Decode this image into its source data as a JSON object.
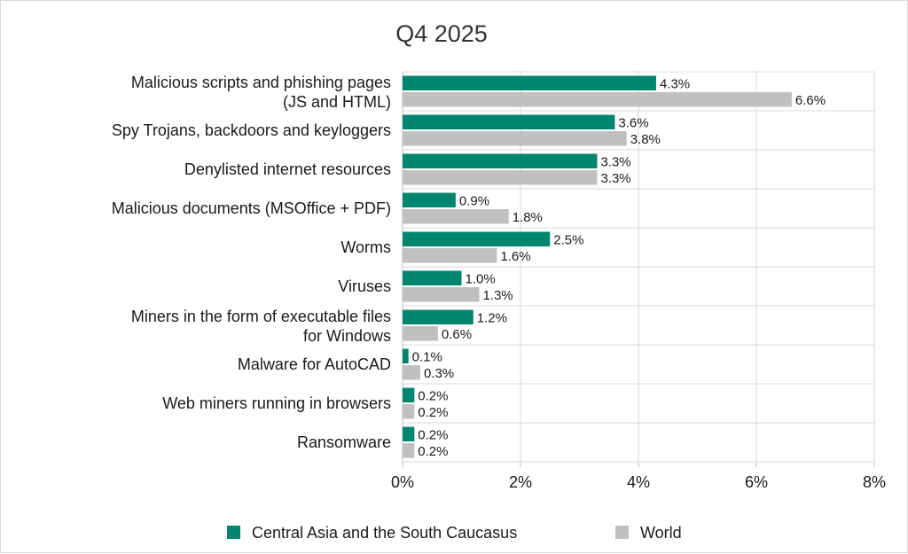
{
  "chart_data": {
    "type": "bar",
    "orientation": "horizontal",
    "title": "Q4 2025",
    "categories": [
      [
        "Malicious scripts and phishing pages",
        "(JS and HTML)"
      ],
      [
        "Spy Trojans, backdoors and keyloggers"
      ],
      [
        "Denylisted internet resources"
      ],
      [
        "Malicious documents (MSOffice + PDF)"
      ],
      [
        "Worms"
      ],
      [
        "Viruses"
      ],
      [
        "Miners in the form of executable files",
        "for Windows"
      ],
      [
        "Malware for AutoCAD"
      ],
      [
        "Web miners running in browsers"
      ],
      [
        "Ransomware"
      ]
    ],
    "series": [
      {
        "name": "Central Asia and the South Caucasus",
        "color": "#00856f",
        "values": [
          4.3,
          3.6,
          3.3,
          0.9,
          2.5,
          1.0,
          1.2,
          0.1,
          0.2,
          0.2
        ],
        "labels": [
          "4.3%",
          "3.6%",
          "3.3%",
          "0.9%",
          "2.5%",
          "1.0%",
          "1.2%",
          "0.1%",
          "0.2%",
          "0.2%"
        ]
      },
      {
        "name": "World",
        "color": "#c0c0c0",
        "values": [
          6.6,
          3.8,
          3.3,
          1.8,
          1.6,
          1.3,
          0.6,
          0.3,
          0.2,
          0.2
        ],
        "labels": [
          "6.6%",
          "3.8%",
          "3.3%",
          "1.8%",
          "1.6%",
          "1.3%",
          "0.6%",
          "0.3%",
          "0.2%",
          "0.2%"
        ]
      }
    ],
    "xlim": [
      0,
      8
    ],
    "x_ticks": [
      0,
      2,
      4,
      6,
      8
    ],
    "x_tick_labels": [
      "0%",
      "2%",
      "4%",
      "6%",
      "8%"
    ],
    "grid": true,
    "legend_position": "bottom"
  }
}
